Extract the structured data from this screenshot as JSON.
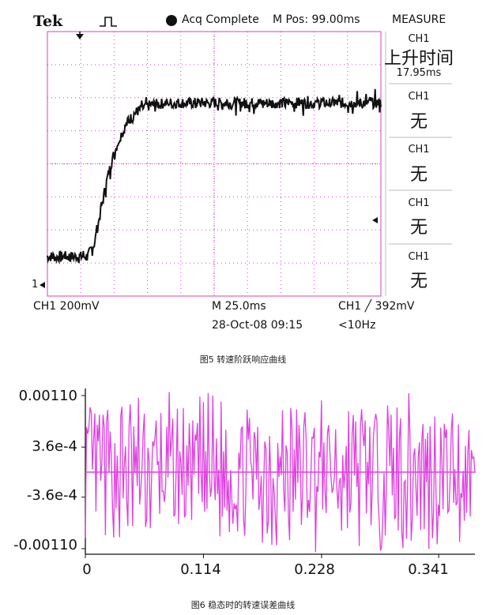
{
  "scope": {
    "brand": "Tek",
    "trigger_status": "Acq Complete",
    "mpos": "M Pos: 99.00ms",
    "measure_title": "MEASURE",
    "measure": [
      {
        "channel": "CH1",
        "label": "上升时间",
        "value": "17.95ms"
      },
      {
        "channel": "CH1",
        "label": "无",
        "value": ""
      },
      {
        "channel": "CH1",
        "label": "无",
        "value": ""
      },
      {
        "channel": "CH1",
        "label": "无",
        "value": ""
      },
      {
        "channel": "CH1",
        "label": "无",
        "value": ""
      }
    ],
    "ch1_scale": "CH1  200mV",
    "timebase": "M 25.0ms",
    "date": "28-Oct-08 09:15",
    "trigger": "CH1 ╱ 392mV",
    "freq": "<10Hz",
    "ch_marker": "1",
    "trace_color": "#111111"
  },
  "caption1": "图5  转速阶跃响应曲线",
  "caption2": "图6  稳态时的转速误差曲线",
  "chart_data": [
    {
      "type": "line",
      "title": "",
      "xlabel": "",
      "ylabel": "",
      "x": [
        0,
        10,
        20,
        30,
        35,
        40,
        45,
        50,
        55,
        60,
        65,
        70,
        75,
        80,
        90,
        100,
        120,
        150,
        200,
        250
      ],
      "series": [
        {
          "values": [
            0,
            0,
            0,
            0,
            0.4,
            1.5,
            2.6,
            3.4,
            4.0,
            4.4,
            4.7,
            4.85,
            4.95,
            5.0,
            5.05,
            5.05,
            5.05,
            5.05,
            5.05,
            5.05
          ]
        }
      ],
      "grid": true
    },
    {
      "type": "line",
      "title": "",
      "xlabel": "",
      "ylabel": "",
      "yticks": [
        "0.00110",
        "3.6e-4",
        "-3.6e-4",
        "-0.00110"
      ],
      "xticks": [
        "0",
        "0.114",
        "0.228",
        "0.341"
      ],
      "ylim": [
        -0.00118,
        0.00118
      ],
      "xlim": [
        0,
        0.376
      ],
      "series_color": "#e040e0",
      "zero_line": 0,
      "grid": false
    }
  ]
}
